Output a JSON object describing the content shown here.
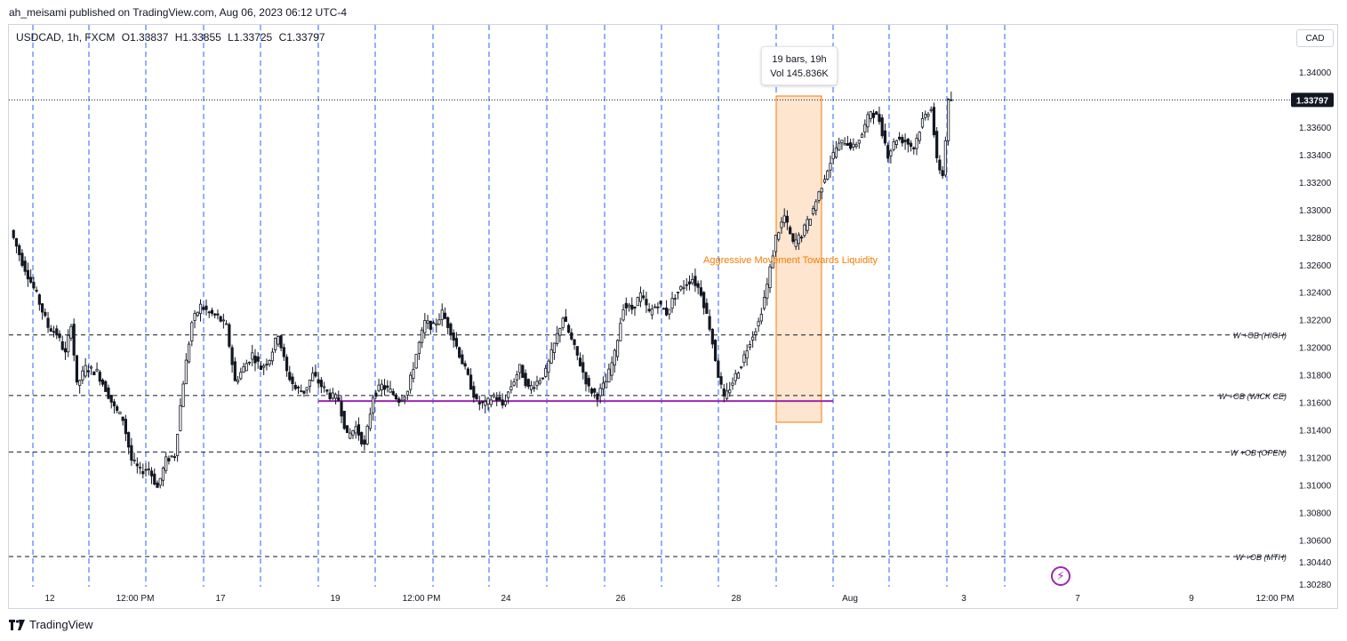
{
  "header": {
    "published": "ah_meisami published on TradingView.com, Aug 06, 2023 06:12 UTC-4"
  },
  "symbol": {
    "name": "USDCAD, 1h, FXCM",
    "open": "O1.33837",
    "high": "H1.33855",
    "low": "L1.33725",
    "close": "C1.33797"
  },
  "currency_label": "CAD",
  "tooltip": {
    "bars": "19 bars, 19h",
    "vol": "Vol 145.836K"
  },
  "footer": {
    "brand": "TradingView"
  },
  "colors": {
    "candle": "#131722",
    "grid_vertical": "#2962ff",
    "range_fill": "#fde5cf",
    "range_border": "#f57c00",
    "annotation": "#f57c00",
    "support_line": "#9c27b0",
    "last_price_bg": "#131722"
  },
  "chart_data": {
    "type": "candlestick",
    "instrument": "USDCAD",
    "timeframe": "1h",
    "y_axis": {
      "ticks": [
        1.34,
        1.336,
        1.334,
        1.332,
        1.33,
        1.328,
        1.326,
        1.324,
        1.322,
        1.32,
        1.318,
        1.316,
        1.314,
        1.312,
        1.31,
        1.308,
        1.306,
        1.3044,
        1.3028
      ],
      "tick_labels": [
        "1.34000",
        "1.33600",
        "1.33400",
        "1.33200",
        "1.33000",
        "1.32800",
        "1.32600",
        "1.32400",
        "1.32200",
        "1.32000",
        "1.31800",
        "1.31600",
        "1.31400",
        "1.31200",
        "1.31000",
        "1.30800",
        "1.30600",
        "1.30440",
        "1.30280"
      ],
      "last_price": 1.33797,
      "last_price_label": "1.33797"
    },
    "x_axis": {
      "tick_labels": [
        "12",
        "12:00 PM",
        "17",
        "19",
        "12:00 PM",
        "24",
        "26",
        "28",
        "Aug",
        "3",
        "7",
        "9",
        "12:00 PM"
      ]
    },
    "horizontal_levels": [
      {
        "label": "W +OB (HIGH)",
        "price": 1.3209
      },
      {
        "label": "W +OB (WICK CE)",
        "price": 1.3165
      },
      {
        "label": "W +OB (OPEN)",
        "price": 1.3124
      },
      {
        "label": "W +OB (MTH)",
        "price": 1.3048
      }
    ],
    "support_line_price": 1.3161,
    "annotation": "Aggressive Movement Towards Liquidity",
    "close_path": [
      [
        0,
        1.3285
      ],
      [
        4,
        1.3262
      ],
      [
        9,
        1.3238
      ],
      [
        13,
        1.3215
      ],
      [
        16,
        1.321
      ],
      [
        19,
        1.3195
      ],
      [
        21,
        1.3218
      ],
      [
        23,
        1.3172
      ],
      [
        26,
        1.3185
      ],
      [
        30,
        1.3182
      ],
      [
        33,
        1.317
      ],
      [
        36,
        1.3156
      ],
      [
        39,
        1.3148
      ],
      [
        42,
        1.3118
      ],
      [
        45,
        1.311
      ],
      [
        48,
        1.3112
      ],
      [
        51,
        1.3098
      ],
      [
        54,
        1.3118
      ],
      [
        57,
        1.3122
      ],
      [
        60,
        1.3175
      ],
      [
        63,
        1.3218
      ],
      [
        66,
        1.323
      ],
      [
        69,
        1.3225
      ],
      [
        72,
        1.3222
      ],
      [
        75,
        1.3215
      ],
      [
        78,
        1.3175
      ],
      [
        81,
        1.3185
      ],
      [
        84,
        1.3195
      ],
      [
        87,
        1.3185
      ],
      [
        90,
        1.3192
      ],
      [
        93,
        1.321
      ],
      [
        96,
        1.3182
      ],
      [
        99,
        1.317
      ],
      [
        102,
        1.3168
      ],
      [
        105,
        1.318
      ],
      [
        108,
        1.3172
      ],
      [
        111,
        1.3165
      ],
      [
        114,
        1.3162
      ],
      [
        117,
        1.3135
      ],
      [
        120,
        1.3142
      ],
      [
        123,
        1.3128
      ],
      [
        126,
        1.3165
      ],
      [
        129,
        1.3172
      ],
      [
        132,
        1.3168
      ],
      [
        135,
        1.3162
      ],
      [
        138,
        1.3168
      ],
      [
        141,
        1.3195
      ],
      [
        144,
        1.3218
      ],
      [
        147,
        1.3215
      ],
      [
        150,
        1.3225
      ],
      [
        153,
        1.3212
      ],
      [
        156,
        1.3195
      ],
      [
        159,
        1.3178
      ],
      [
        162,
        1.316
      ],
      [
        165,
        1.3158
      ],
      [
        168,
        1.3165
      ],
      [
        171,
        1.3158
      ],
      [
        174,
        1.3172
      ],
      [
        177,
        1.3185
      ],
      [
        180,
        1.317
      ],
      [
        183,
        1.3175
      ],
      [
        186,
        1.3182
      ],
      [
        189,
        1.3202
      ],
      [
        192,
        1.3222
      ],
      [
        195,
        1.3205
      ],
      [
        198,
        1.3188
      ],
      [
        201,
        1.317
      ],
      [
        204,
        1.3165
      ],
      [
        207,
        1.3175
      ],
      [
        210,
        1.3195
      ],
      [
        213,
        1.323
      ],
      [
        216,
        1.3228
      ],
      [
        219,
        1.3238
      ],
      [
        222,
        1.3225
      ],
      [
        225,
        1.3232
      ],
      [
        228,
        1.3225
      ],
      [
        231,
        1.3238
      ],
      [
        234,
        1.3245
      ],
      [
        237,
        1.325
      ],
      [
        240,
        1.324
      ],
      [
        243,
        1.3215
      ],
      [
        246,
        1.318
      ],
      [
        248,
        1.3162
      ],
      [
        251,
        1.3175
      ],
      [
        254,
        1.3188
      ],
      [
        257,
        1.3205
      ],
      [
        260,
        1.3218
      ],
      [
        263,
        1.3245
      ],
      [
        266,
        1.328
      ],
      [
        269,
        1.3295
      ],
      [
        272,
        1.3275
      ],
      [
        275,
        1.3282
      ],
      [
        278,
        1.3295
      ],
      [
        281,
        1.3312
      ],
      [
        284,
        1.333
      ],
      [
        287,
        1.3345
      ],
      [
        290,
        1.335
      ],
      [
        293,
        1.3345
      ],
      [
        296,
        1.3355
      ],
      [
        299,
        1.3372
      ],
      [
        302,
        1.3365
      ],
      [
        305,
        1.334
      ],
      [
        308,
        1.3352
      ],
      [
        311,
        1.335
      ],
      [
        314,
        1.3345
      ],
      [
        317,
        1.3365
      ],
      [
        320,
        1.3375
      ],
      [
        322,
        1.3335
      ],
      [
        324,
        1.3325
      ],
      [
        326,
        1.3378
      ],
      [
        327,
        1.338
      ]
    ]
  }
}
